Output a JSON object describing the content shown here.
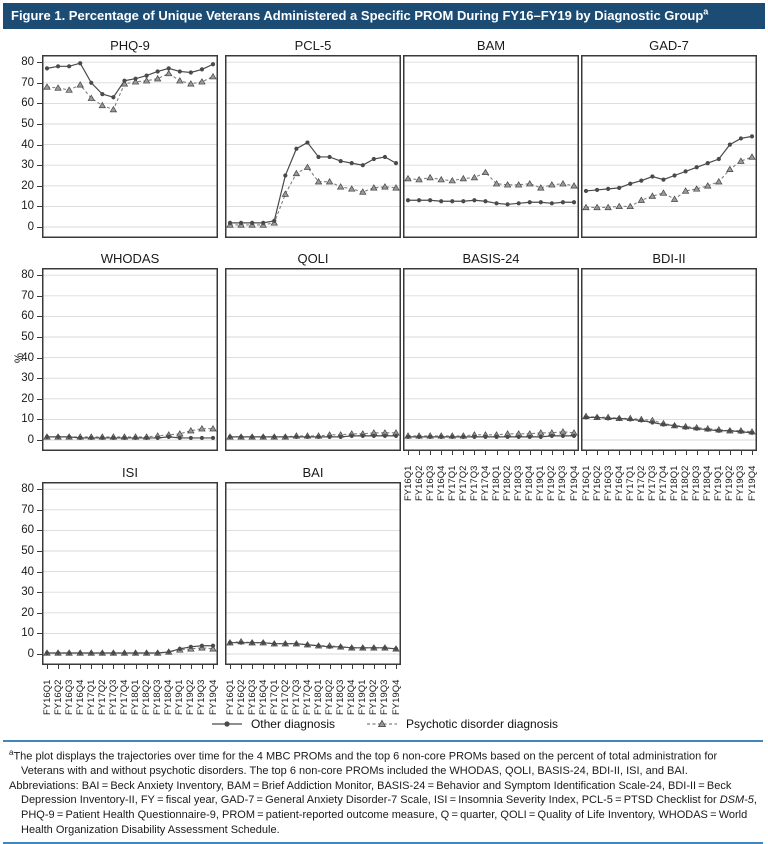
{
  "header": {
    "title": "Figure 1. Percentage of Unique Veterans Administered a Specific PROM During FY16–FY19 by Diagnostic Group",
    "footnote_marker": "a"
  },
  "legend": {
    "other_label": "Other diagnosis",
    "psychotic_label": "Psychotic disorder diagnosis"
  },
  "colors": {
    "header_bg": "#1c4b74",
    "divider_blue": "#4187bf",
    "other_series": "#4a4a4a",
    "psychotic_series": "#808080",
    "gridline": "#d9d9d9",
    "panel_border": "#3a3a3a"
  },
  "chart_data": {
    "type": "line",
    "ylabel": "%",
    "ylim": [
      0,
      84
    ],
    "y_ticks": [
      0,
      10,
      20,
      30,
      40,
      50,
      60,
      70,
      80
    ],
    "grid": true,
    "legend_position": "bottom",
    "categories": [
      "FY16Q1",
      "FY16Q2",
      "FY16Q3",
      "FY16Q4",
      "FY17Q1",
      "FY17Q2",
      "FY17Q3",
      "FY17Q4",
      "FY18Q1",
      "FY18Q2",
      "FY18Q3",
      "FY18Q4",
      "FY19Q1",
      "FY19Q2",
      "FY19Q3",
      "FY19Q4"
    ],
    "series_names": [
      "Other diagnosis",
      "Psychotic disorder diagnosis"
    ],
    "panels": [
      {
        "title": "PHQ-9",
        "row": 0,
        "col": 0,
        "show_y_labels": true,
        "show_x_labels": false,
        "show_y_title": false,
        "other": [
          77,
          78,
          78,
          79.5,
          70,
          64.5,
          63,
          71,
          72,
          73.5,
          75.5,
          77,
          75.5,
          75,
          76.5,
          79
        ],
        "psychotic": [
          68,
          67.5,
          66.5,
          69,
          62.5,
          59,
          57,
          69.5,
          70.5,
          71,
          72,
          74.5,
          71,
          69.5,
          70.5,
          73
        ]
      },
      {
        "title": "PCL-5",
        "row": 0,
        "col": 1,
        "show_y_labels": false,
        "show_x_labels": false,
        "show_y_title": false,
        "other": [
          2,
          2,
          2,
          2,
          3,
          25,
          38,
          41,
          34,
          34,
          32,
          31,
          30,
          33,
          34,
          31
        ],
        "psychotic": [
          1,
          1,
          1,
          1,
          2,
          16,
          26,
          29,
          22,
          22,
          19.5,
          18.5,
          17,
          19,
          19.5,
          19
        ]
      },
      {
        "title": "BAM",
        "row": 0,
        "col": 2,
        "show_y_labels": false,
        "show_x_labels": false,
        "show_y_title": false,
        "other": [
          13,
          13,
          13,
          12.5,
          12.5,
          12.5,
          13,
          12.5,
          11.5,
          11,
          11.5,
          12,
          12,
          11.5,
          12,
          12
        ],
        "psychotic": [
          23.5,
          23,
          24,
          23,
          22.5,
          23.5,
          24,
          26.5,
          21,
          20.5,
          20.5,
          21,
          19,
          20.5,
          21,
          20
        ]
      },
      {
        "title": "GAD-7",
        "row": 0,
        "col": 3,
        "show_y_labels": false,
        "show_x_labels": false,
        "show_y_title": false,
        "other": [
          17.5,
          18,
          18.5,
          19,
          21,
          22.5,
          24.5,
          23,
          25,
          27,
          29,
          31,
          33,
          40,
          43,
          44
        ],
        "psychotic": [
          9.5,
          9.5,
          9.5,
          10,
          10,
          13,
          15,
          16.5,
          13.5,
          17.5,
          18.5,
          20,
          22,
          28,
          32,
          34
        ]
      },
      {
        "title": "WHODAS",
        "row": 1,
        "col": 0,
        "show_y_labels": true,
        "show_x_labels": false,
        "show_y_title": true,
        "other": [
          1.5,
          1.5,
          1.5,
          1,
          1,
          1,
          1,
          1,
          1,
          1,
          1,
          1.5,
          1,
          1,
          1,
          1
        ],
        "psychotic": [
          1.5,
          1.5,
          1.5,
          1.5,
          1.5,
          1.5,
          1.5,
          1.5,
          1.5,
          1.5,
          2,
          2.5,
          3,
          4.5,
          5.5,
          5.5
        ]
      },
      {
        "title": "QOLI",
        "row": 1,
        "col": 1,
        "show_y_labels": false,
        "show_x_labels": false,
        "show_y_title": false,
        "other": [
          1.5,
          1.5,
          1.5,
          1.5,
          1.5,
          1.5,
          1.5,
          1.5,
          1.5,
          1.5,
          1.5,
          2,
          2,
          2,
          2,
          2
        ],
        "psychotic": [
          1.5,
          1.5,
          1.5,
          1.5,
          1.5,
          1.5,
          2,
          2,
          2,
          2.5,
          2.5,
          3,
          3,
          3.5,
          3.5,
          3.5
        ]
      },
      {
        "title": "BASIS-24",
        "row": 1,
        "col": 2,
        "show_y_labels": false,
        "show_x_labels": true,
        "show_y_title": false,
        "other": [
          1.5,
          1.5,
          1.5,
          1.5,
          1.5,
          1.5,
          1.5,
          1.5,
          1.5,
          1.5,
          1.5,
          1.5,
          1.5,
          2,
          2,
          2
        ],
        "psychotic": [
          2,
          2,
          2,
          2,
          2,
          2,
          2.5,
          2.5,
          2.5,
          3,
          3,
          3,
          3.5,
          3.5,
          4,
          3.5
        ]
      },
      {
        "title": "BDI-II",
        "row": 1,
        "col": 3,
        "show_y_labels": false,
        "show_x_labels": true,
        "show_y_title": false,
        "other": [
          11,
          11,
          10.5,
          10.5,
          10,
          9.5,
          8.5,
          7.5,
          7,
          6,
          5.5,
          5,
          4.5,
          4.5,
          4,
          3.5
        ],
        "psychotic": [
          11.5,
          11,
          11,
          10.5,
          10.5,
          10,
          9.5,
          8,
          7,
          6.5,
          6,
          5.5,
          5,
          4.5,
          4.5,
          4
        ]
      },
      {
        "title": "ISI",
        "row": 2,
        "col": 0,
        "show_y_labels": true,
        "show_x_labels": true,
        "show_y_title": false,
        "other": [
          0.5,
          0.5,
          0.5,
          0.5,
          0.5,
          0.5,
          0.5,
          0.5,
          0.5,
          0.5,
          0.5,
          1,
          2.5,
          3.5,
          4,
          4
        ],
        "psychotic": [
          0.5,
          0.5,
          0.5,
          0.5,
          0.5,
          0.5,
          0.5,
          0.5,
          0.5,
          0.5,
          0.5,
          1,
          2,
          2.5,
          3,
          2.5
        ]
      },
      {
        "title": "BAI",
        "row": 2,
        "col": 1,
        "show_y_labels": false,
        "show_x_labels": true,
        "show_y_title": false,
        "other": [
          5.5,
          5.5,
          5.5,
          5.5,
          5,
          5,
          5,
          4.5,
          4,
          3.5,
          3.5,
          3,
          3,
          3,
          3,
          2.5
        ],
        "psychotic": [
          5.5,
          6,
          5.5,
          5.5,
          5,
          5,
          5,
          4.5,
          4,
          4,
          3.5,
          3,
          3,
          3,
          3,
          2.5
        ]
      }
    ]
  },
  "footnotes": {
    "marker": "a",
    "note1": "The plot displays the trajectories over time for the 4 MBC PROMs and the top 6 non-core PROMs based on the percent of total administration for Veterans with and without psychotic disorders. The top 6 non-core PROMs included the WHODAS, QOLI, BASIS-24, BDI-II, ISI, and BAI.",
    "abbrev_pre": "Abbreviations: BAI = Beck Anxiety Inventory, BAM = Brief Addiction Monitor, BASIS-24 = Behavior and Symptom Identification Scale-24, BDI-II = Beck Depression Inventory-II, FY = fiscal year, GAD-7 = General Anxiety Disorder-7 Scale, ISI = Insomnia Severity Index, PCL-5 = PTSD Checklist for ",
    "abbrev_italic": "DSM-5",
    "abbrev_post": ", PHQ-9 = Patient Health Questionnaire-9, PROM = patient-reported outcome measure, Q = quarter, QOLI = Quality of Life Inventory, WHODAS = World Health Organization Disability Assessment Schedule."
  }
}
